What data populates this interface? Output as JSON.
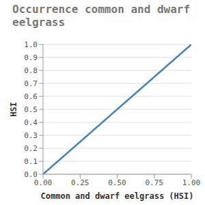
{
  "chart_data": {
    "type": "line",
    "title": "Occurrence common and dwarf eelgrass",
    "x_label": "Common and dwarf eelgrass (HSI)",
    "y_label": "HSI",
    "x": [
      0,
      1
    ],
    "values": [
      0,
      1
    ],
    "color": "#4682b4",
    "xlim": [
      0,
      1
    ],
    "xticks": [
      {
        "value": 0,
        "label": "0.00"
      },
      {
        "value": 0.25,
        "label": "0.25"
      },
      {
        "value": 0.5,
        "label": "0.50"
      },
      {
        "value": 0.75,
        "label": "0.75"
      },
      {
        "value": 1,
        "label": "1.00"
      }
    ],
    "ylim": [
      0,
      1
    ],
    "yticks": [
      {
        "value": 0,
        "label": "0.0"
      },
      0.1,
      0.2,
      0.3,
      0.4,
      0.5,
      0.6,
      0.7,
      0.8,
      0.9,
      {
        "value": 1,
        "label": "1.0"
      }
    ],
    "grid": true
  }
}
